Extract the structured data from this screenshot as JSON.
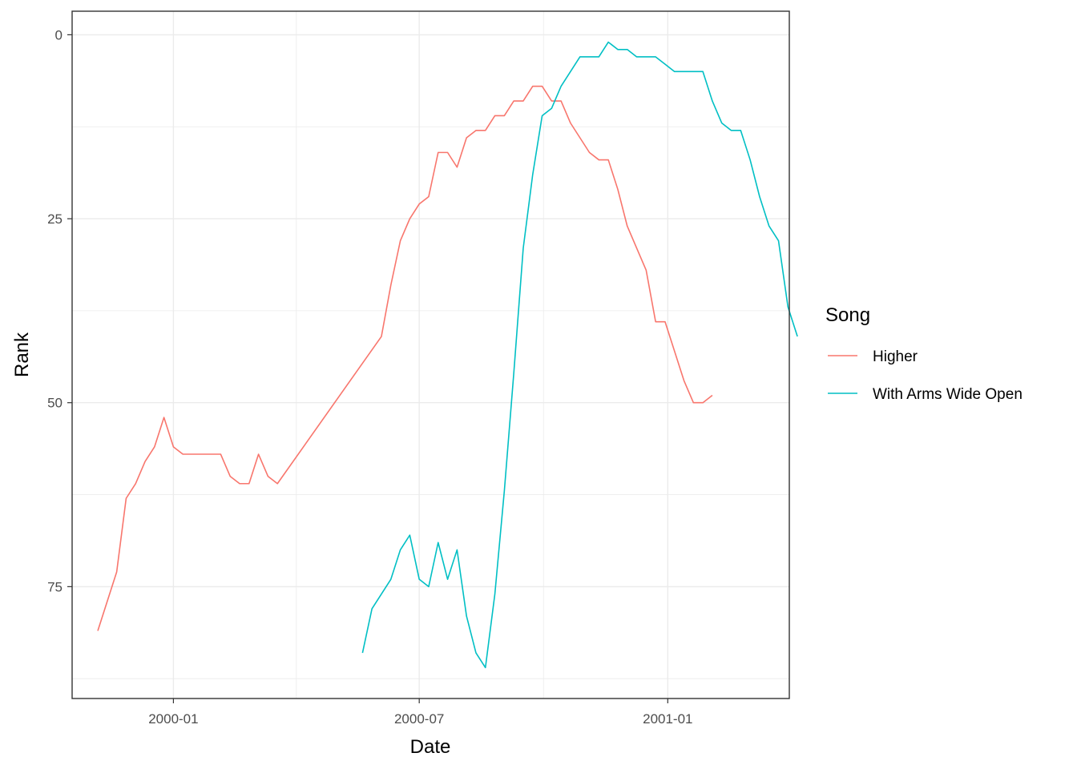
{
  "chart_data": {
    "type": "line",
    "xlabel": "Date",
    "ylabel": "Rank",
    "x_ticks": [
      "2000-01",
      "2000-07",
      "2001-01"
    ],
    "y_ticks": [
      0,
      25,
      50,
      75
    ],
    "xlim": [
      "1999-10-18",
      "2001-04-01"
    ],
    "ylim": [
      90.2,
      -3.2
    ],
    "y_reversed": true,
    "grid": true,
    "legend": {
      "title": "Song",
      "position": "right"
    },
    "series": [
      {
        "name": "Higher",
        "color": "#F8766D",
        "points": [
          {
            "x": "1999-11-06",
            "y": 81
          },
          {
            "x": "1999-11-13",
            "y": 77
          },
          {
            "x": "1999-11-20",
            "y": 73
          },
          {
            "x": "1999-11-27",
            "y": 63
          },
          {
            "x": "1999-12-04",
            "y": 61
          },
          {
            "x": "1999-12-11",
            "y": 58
          },
          {
            "x": "1999-12-18",
            "y": 56
          },
          {
            "x": "1999-12-25",
            "y": 52
          },
          {
            "x": "2000-01-01",
            "y": 56
          },
          {
            "x": "2000-01-08",
            "y": 57
          },
          {
            "x": "2000-01-15",
            "y": 57
          },
          {
            "x": "2000-01-22",
            "y": 57
          },
          {
            "x": "2000-01-29",
            "y": 57
          },
          {
            "x": "2000-02-05",
            "y": 57
          },
          {
            "x": "2000-02-12",
            "y": 60
          },
          {
            "x": "2000-02-19",
            "y": 61
          },
          {
            "x": "2000-02-26",
            "y": 61
          },
          {
            "x": "2000-03-04",
            "y": 57
          },
          {
            "x": "2000-03-11",
            "y": 60
          },
          {
            "x": "2000-03-18",
            "y": 61
          },
          {
            "x": "2000-06-03",
            "y": 41
          },
          {
            "x": "2000-06-10",
            "y": 34
          },
          {
            "x": "2000-06-17",
            "y": 28
          },
          {
            "x": "2000-06-24",
            "y": 25
          },
          {
            "x": "2000-07-01",
            "y": 23
          },
          {
            "x": "2000-07-08",
            "y": 22
          },
          {
            "x": "2000-07-15",
            "y": 16
          },
          {
            "x": "2000-07-22",
            "y": 16
          },
          {
            "x": "2000-07-29",
            "y": 18
          },
          {
            "x": "2000-08-05",
            "y": 14
          },
          {
            "x": "2000-08-12",
            "y": 13
          },
          {
            "x": "2000-08-19",
            "y": 13
          },
          {
            "x": "2000-08-26",
            "y": 11
          },
          {
            "x": "2000-09-02",
            "y": 11
          },
          {
            "x": "2000-09-09",
            "y": 9
          },
          {
            "x": "2000-09-16",
            "y": 9
          },
          {
            "x": "2000-09-23",
            "y": 7
          },
          {
            "x": "2000-09-30",
            "y": 7
          },
          {
            "x": "2000-10-07",
            "y": 9
          },
          {
            "x": "2000-10-14",
            "y": 9
          },
          {
            "x": "2000-10-21",
            "y": 12
          },
          {
            "x": "2000-10-28",
            "y": 14
          },
          {
            "x": "2000-11-04",
            "y": 16
          },
          {
            "x": "2000-11-11",
            "y": 17
          },
          {
            "x": "2000-11-18",
            "y": 17
          },
          {
            "x": "2000-11-25",
            "y": 21
          },
          {
            "x": "2000-12-02",
            "y": 26
          },
          {
            "x": "2000-12-09",
            "y": 29
          },
          {
            "x": "2000-12-16",
            "y": 32
          },
          {
            "x": "2000-12-23",
            "y": 39
          },
          {
            "x": "2000-12-30",
            "y": 39
          },
          {
            "x": "2001-01-06",
            "y": 43
          },
          {
            "x": "2001-01-13",
            "y": 47
          },
          {
            "x": "2001-01-20",
            "y": 50
          },
          {
            "x": "2001-01-27",
            "y": 50
          },
          {
            "x": "2001-02-03",
            "y": 49
          }
        ]
      },
      {
        "name": "With Arms Wide Open",
        "color": "#00BFC4",
        "points": [
          {
            "x": "2000-05-20",
            "y": 84
          },
          {
            "x": "2000-05-27",
            "y": 78
          },
          {
            "x": "2000-06-03",
            "y": 76
          },
          {
            "x": "2000-06-10",
            "y": 74
          },
          {
            "x": "2000-06-17",
            "y": 70
          },
          {
            "x": "2000-06-24",
            "y": 68
          },
          {
            "x": "2000-07-01",
            "y": 74
          },
          {
            "x": "2000-07-08",
            "y": 75
          },
          {
            "x": "2000-07-15",
            "y": 69
          },
          {
            "x": "2000-07-22",
            "y": 74
          },
          {
            "x": "2000-07-29",
            "y": 70
          },
          {
            "x": "2000-08-05",
            "y": 79
          },
          {
            "x": "2000-08-12",
            "y": 84
          },
          {
            "x": "2000-08-19",
            "y": 86
          },
          {
            "x": "2000-08-26",
            "y": 76
          },
          {
            "x": "2000-09-02",
            "y": 62
          },
          {
            "x": "2000-09-09",
            "y": 46
          },
          {
            "x": "2000-09-16",
            "y": 29
          },
          {
            "x": "2000-09-23",
            "y": 19
          },
          {
            "x": "2000-09-30",
            "y": 11
          },
          {
            "x": "2000-10-07",
            "y": 10
          },
          {
            "x": "2000-10-14",
            "y": 7
          },
          {
            "x": "2000-10-21",
            "y": 5
          },
          {
            "x": "2000-10-28",
            "y": 3
          },
          {
            "x": "2000-11-04",
            "y": 3
          },
          {
            "x": "2000-11-11",
            "y": 3
          },
          {
            "x": "2000-11-18",
            "y": 1
          },
          {
            "x": "2000-11-25",
            "y": 2
          },
          {
            "x": "2000-12-02",
            "y": 2
          },
          {
            "x": "2000-12-09",
            "y": 3
          },
          {
            "x": "2000-12-16",
            "y": 3
          },
          {
            "x": "2000-12-23",
            "y": 3
          },
          {
            "x": "2000-12-30",
            "y": 4
          },
          {
            "x": "2001-01-06",
            "y": 5
          },
          {
            "x": "2001-01-13",
            "y": 5
          },
          {
            "x": "2001-01-20",
            "y": 5
          },
          {
            "x": "2001-01-27",
            "y": 5
          },
          {
            "x": "2001-02-03",
            "y": 9
          },
          {
            "x": "2001-02-10",
            "y": 12
          },
          {
            "x": "2001-02-17",
            "y": 13
          },
          {
            "x": "2001-02-24",
            "y": 13
          },
          {
            "x": "2001-03-03",
            "y": 17
          },
          {
            "x": "2001-03-10",
            "y": 22
          },
          {
            "x": "2001-03-17",
            "y": 26
          },
          {
            "x": "2001-03-24",
            "y": 28
          },
          {
            "x": "2001-03-31",
            "y": 37
          },
          {
            "x": "2001-04-07",
            "y": 41
          }
        ]
      }
    ]
  }
}
